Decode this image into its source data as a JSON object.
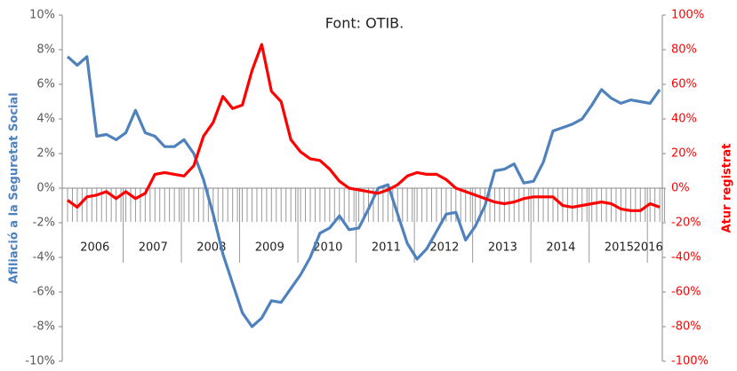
{
  "chart_data": {
    "type": "line",
    "annotations": [
      "Font: OTIB."
    ],
    "ylabel": "Afiliació a la Seguretat Social",
    "y2label": "Atur registrat",
    "categories": [
      null,
      null,
      null,
      "2006",
      null,
      null,
      null,
      null,
      null,
      "2007",
      null,
      null,
      null,
      null,
      null,
      "2008",
      null,
      null,
      null,
      null,
      null,
      "2009",
      null,
      null,
      null,
      null,
      null,
      "2010",
      null,
      null,
      null,
      null,
      null,
      "2011",
      null,
      null,
      null,
      null,
      null,
      "2012",
      null,
      null,
      null,
      null,
      null,
      "2013",
      null,
      null,
      null,
      null,
      null,
      "2014",
      null,
      null,
      null,
      null,
      null,
      "2015",
      null,
      null,
      "2016",
      null
    ],
    "series": [
      {
        "name": "Afiliació a la Seguretat Social",
        "color": "#4f81bd",
        "values": [
          7.6,
          7.1,
          7.6,
          3.0,
          3.1,
          2.8,
          3.2,
          4.5,
          3.2,
          3.0,
          2.4,
          2.4,
          2.8,
          2.0,
          0.5,
          -1.5,
          -3.8,
          -5.5,
          -7.2,
          -8.0,
          -7.5,
          -6.5,
          -6.6,
          -5.8,
          -5.0,
          -4.0,
          -2.6,
          -2.3,
          -1.6,
          -2.4,
          -2.3,
          -1.2,
          0.0,
          0.2,
          -1.5,
          -3.2,
          -4.1,
          -3.5,
          -2.5,
          -1.5,
          -1.4,
          -3.0,
          -2.2,
          -1.0,
          1.0,
          1.1,
          1.4,
          0.3,
          0.4,
          1.5,
          3.3,
          3.5,
          3.7,
          4.0,
          4.8,
          5.7,
          5.2,
          4.9,
          5.1,
          5.0,
          4.9,
          5.7
        ]
      },
      {
        "name": "Atur registrat",
        "color": "#ff0000",
        "axis": "y2",
        "values": [
          -7,
          -11,
          -5,
          -4,
          -2,
          -6,
          -2,
          -6,
          -3,
          8,
          9,
          8,
          7,
          13,
          30,
          38,
          53,
          46,
          48,
          68,
          83,
          56,
          50,
          28,
          21,
          17,
          16,
          11,
          4,
          0,
          -1,
          -2,
          -3,
          -1,
          2,
          7,
          9,
          8,
          8,
          5,
          0,
          -2,
          -4,
          -6,
          -8,
          -9,
          -8,
          -6,
          -5,
          -5,
          -5,
          -10,
          -11,
          -10,
          -9,
          -8,
          -9,
          -12,
          -13,
          -13,
          -9,
          -11
        ]
      }
    ],
    "ylim": [
      -10,
      10
    ],
    "yticks": [
      {
        "value": -10,
        "label": "-10%"
      },
      {
        "value": -8,
        "label": "-8%"
      },
      {
        "value": -6,
        "label": "-6%"
      },
      {
        "value": -4,
        "label": "-4%"
      },
      {
        "value": -2,
        "label": "-2%"
      },
      {
        "value": 0,
        "label": "0%"
      },
      {
        "value": 2,
        "label": "2%"
      },
      {
        "value": 4,
        "label": "4%"
      },
      {
        "value": 6,
        "label": "6%"
      },
      {
        "value": 8,
        "label": "8%"
      },
      {
        "value": 10,
        "label": "10%"
      }
    ],
    "y2lim": [
      -100,
      100
    ],
    "y2ticks": [
      {
        "value": -100,
        "label": "-100%"
      },
      {
        "value": -80,
        "label": "-80%"
      },
      {
        "value": -60,
        "label": "-60%"
      },
      {
        "value": -40,
        "label": "-40%"
      },
      {
        "value": -20,
        "label": "-20%"
      },
      {
        "value": 0,
        "label": "0%"
      },
      {
        "value": 20,
        "label": "20%"
      },
      {
        "value": 40,
        "label": "40%"
      },
      {
        "value": 60,
        "label": "60%"
      },
      {
        "value": 80,
        "label": "80%"
      },
      {
        "value": 100,
        "label": "100%"
      }
    ]
  }
}
